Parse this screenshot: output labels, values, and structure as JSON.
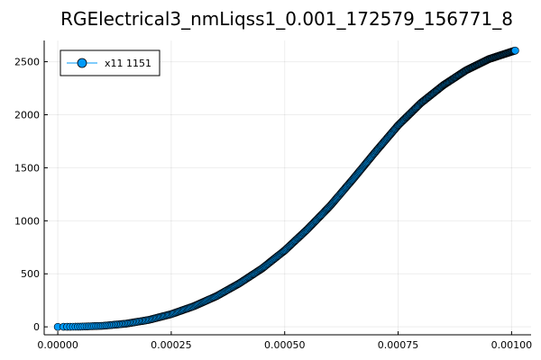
{
  "chart_data": {
    "type": "scatter",
    "title": "RGElectrical3_nmLiqss1_0.001_172579_156771_8",
    "xlabel": "",
    "ylabel": "",
    "xlim": [
      -3e-05,
      0.001043
    ],
    "ylim": [
      -75,
      2700
    ],
    "x_ticks": [
      0,
      0.00025,
      0.0005,
      0.00075,
      0.001
    ],
    "x_tick_labels": [
      "0.00000",
      "0.00025",
      "0.00050",
      "0.00075",
      "0.00100"
    ],
    "y_ticks": [
      0,
      500,
      1000,
      1500,
      2000,
      2500
    ],
    "y_tick_labels": [
      "0",
      "500",
      "1000",
      "1500",
      "2000",
      "2500"
    ],
    "grid": true,
    "legend_position": "top-left",
    "series": [
      {
        "name": "x11 1151",
        "color": "#009af9",
        "marker": "circle",
        "curve_anchor_points": {
          "x": [
            0,
            5e-05,
            0.0001,
            0.00015,
            0.0002,
            0.00025,
            0.0003,
            0.00035,
            0.0004,
            0.00045,
            0.0005,
            0.00055,
            0.0006,
            0.00065,
            0.0007,
            0.00075,
            0.0008,
            0.00085,
            0.0009,
            0.00095,
            0.001,
            0.001008
          ],
          "y": [
            0,
            2,
            10,
            30,
            65,
            120,
            195,
            290,
            410,
            550,
            720,
            920,
            1140,
            1390,
            1650,
            1900,
            2110,
            2280,
            2420,
            2525,
            2595,
            2605
          ]
        }
      }
    ]
  }
}
